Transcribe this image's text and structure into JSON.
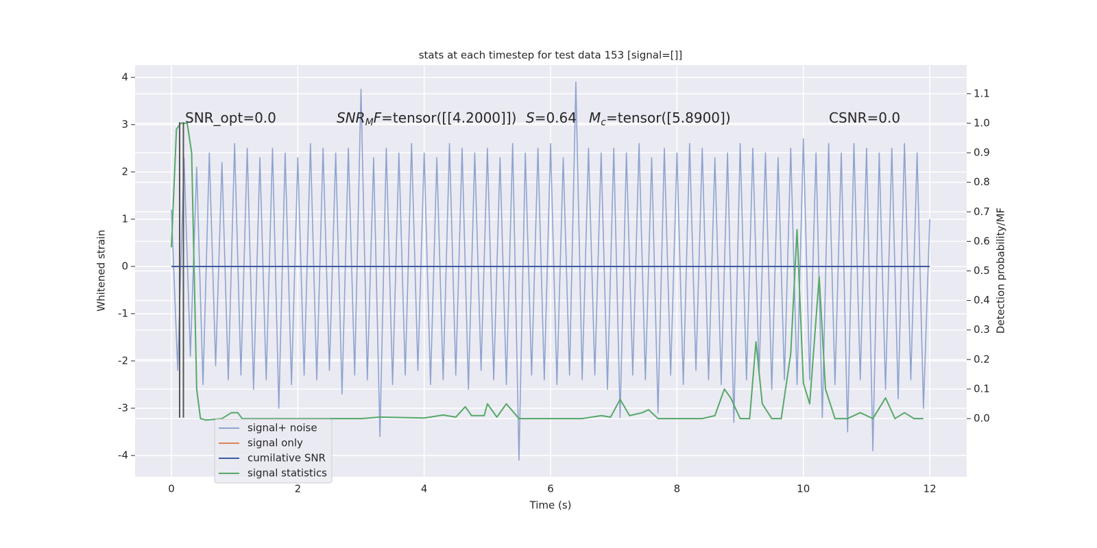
{
  "chart_data": {
    "type": "line",
    "title": "stats at each timestep for test data 153 [signal=[]]",
    "xlabel": "Time (s)",
    "ylabel": "Whitened strain",
    "y2label": "Detection probability/MF",
    "xlim": [
      -0.575,
      12.585
    ],
    "xticks": [
      0,
      2,
      4,
      6,
      8,
      10,
      12
    ],
    "ylim": [
      -4.45,
      4.26
    ],
    "yticks": [
      -4,
      -3,
      -2,
      -1,
      0,
      1,
      2,
      3,
      4
    ],
    "y2lim": [
      -0.197,
      1.197
    ],
    "y2ticks": [
      {
        "value": 0,
        "label": "0.0"
      },
      0.1,
      0.2,
      0.3,
      0.4,
      0.5,
      0.6,
      0.7,
      0.8,
      0.9,
      {
        "value": 1,
        "label": "1.0"
      },
      1.1
    ],
    "grid": true,
    "legend": "lower left",
    "series": [
      {
        "name": "signal+ noise",
        "color": "#8ea3cf",
        "x": [
          0,
          0.1,
          0.2,
          0.3,
          0.4,
          0.5,
          0.6,
          0.7,
          0.8,
          0.9,
          1,
          1.1,
          1.2,
          1.3,
          1.4,
          1.5,
          1.6,
          1.7,
          1.8,
          1.9,
          2,
          2.1,
          2.2,
          2.3,
          2.4,
          2.5,
          2.6,
          2.7,
          2.8,
          2.9,
          3,
          3.1,
          3.2,
          3.3,
          3.4,
          3.5,
          3.6,
          3.7,
          3.8,
          3.9,
          4,
          4.1,
          4.2,
          4.3,
          4.4,
          4.5,
          4.6,
          4.7,
          4.8,
          4.9,
          5,
          5.1,
          5.2,
          5.3,
          5.4,
          5.5,
          5.6,
          5.7,
          5.8,
          5.9,
          6,
          6.1,
          6.2,
          6.3,
          6.4,
          6.5,
          6.6,
          6.7,
          6.8,
          6.9,
          7,
          7.1,
          7.2,
          7.3,
          7.4,
          7.5,
          7.6,
          7.7,
          7.8,
          7.9,
          8,
          8.1,
          8.2,
          8.3,
          8.4,
          8.5,
          8.6,
          8.7,
          8.8,
          8.9,
          9,
          9.1,
          9.2,
          9.3,
          9.4,
          9.5,
          9.6,
          9.7,
          9.8,
          9.9,
          10,
          10.1,
          10.2,
          10.3,
          10.4,
          10.5,
          10.6,
          10.7,
          10.8,
          10.9,
          11,
          11.1,
          11.2,
          11.3,
          11.4,
          11.5,
          11.6,
          11.7,
          11.8,
          11.9,
          12
        ],
        "values": [
          1.2,
          -2.2,
          2.3,
          -1.9,
          2.1,
          -2.5,
          2.4,
          -2.1,
          2.2,
          -2.4,
          2.6,
          -2.3,
          2.5,
          -2.6,
          2.3,
          -2.4,
          2.5,
          -3.0,
          2.4,
          -2.5,
          2.3,
          -2.3,
          2.6,
          -2.4,
          2.5,
          -2.2,
          2.4,
          -2.7,
          2.5,
          -2.3,
          3.75,
          -2.4,
          2.3,
          -3.6,
          2.5,
          -2.5,
          2.4,
          -2.3,
          2.6,
          -2.2,
          2.4,
          -2.5,
          2.3,
          -2.4,
          2.6,
          -2.3,
          2.5,
          -2.6,
          2.4,
          -2.2,
          2.5,
          -2.4,
          2.3,
          -2.5,
          2.6,
          -4.1,
          2.4,
          -2.3,
          2.5,
          -2.4,
          2.6,
          -2.5,
          2.3,
          -2.3,
          3.9,
          -2.4,
          2.5,
          -2.3,
          2.4,
          -2.6,
          2.5,
          -3.2,
          2.4,
          -2.3,
          2.6,
          -2.4,
          2.3,
          -3.1,
          2.5,
          -2.3,
          2.4,
          -2.5,
          2.6,
          -2.2,
          2.5,
          -2.4,
          2.3,
          -2.5,
          2.4,
          -3.3,
          2.6,
          -2.4,
          2.5,
          -2.3,
          2.4,
          -2.6,
          2.3,
          -2.4,
          2.5,
          -2.5,
          2.7,
          -2.4,
          2.4,
          -3.2,
          2.6,
          -2.5,
          2.4,
          -3.5,
          2.6,
          -2.4,
          2.5,
          -3.9,
          2.4,
          -2.6,
          2.5,
          -2.8,
          2.6,
          -2.4,
          2.4,
          -3.0,
          1.0
        ]
      },
      {
        "name": "signal only",
        "color": "#dd8452",
        "x": [
          0,
          12
        ],
        "values": [
          0,
          0
        ]
      },
      {
        "name": "cumilative SNR",
        "color": "#3a5ba0",
        "x": [
          0,
          12
        ],
        "values": [
          0,
          0
        ]
      },
      {
        "name": "signal statistics",
        "color": "#55a868",
        "axis": "y2",
        "x": [
          0,
          0.08,
          0.15,
          0.25,
          0.32,
          0.4,
          0.46,
          0.55,
          0.8,
          0.95,
          1.05,
          1.12,
          1.5,
          2,
          3,
          3.3,
          4,
          4.3,
          4.5,
          4.65,
          4.75,
          4.95,
          5,
          5.15,
          5.3,
          5.5,
          6,
          6.5,
          6.8,
          6.95,
          7.1,
          7.25,
          7.45,
          7.55,
          7.7,
          8,
          8.4,
          8.6,
          8.75,
          8.85,
          9,
          9.15,
          9.25,
          9.35,
          9.5,
          9.65,
          9.8,
          9.9,
          10,
          10.1,
          10.25,
          10.35,
          10.5,
          10.7,
          10.9,
          11.1,
          11.3,
          11.45,
          11.6,
          11.75,
          11.9
        ],
        "values": [
          0.58,
          0.98,
          1.0,
          1.0,
          0.9,
          0.1,
          0.0,
          -0.005,
          0.0,
          0.02,
          0.02,
          0.0,
          0.0,
          0.0,
          0.0,
          0.005,
          0.002,
          0.012,
          0.005,
          0.04,
          0.01,
          0.01,
          0.05,
          0.005,
          0.05,
          0.0,
          0.0,
          0.0,
          0.01,
          0.005,
          0.065,
          0.01,
          0.02,
          0.03,
          0.0,
          0.0,
          0.0,
          0.01,
          0.1,
          0.07,
          0.0,
          0.0,
          0.26,
          0.05,
          0.0,
          0.0,
          0.22,
          0.64,
          0.12,
          0.05,
          0.48,
          0.1,
          0.0,
          0.0,
          0.02,
          0.0,
          0.07,
          0.0,
          0.02,
          0.0,
          0.0
        ]
      }
    ],
    "vlines": {
      "x": [
        0.13,
        0.19
      ],
      "ymin": -3.2,
      "ymax": 3.05,
      "color": "#555555"
    },
    "annotations": [
      {
        "text": "SNR_opt=0.0"
      },
      {
        "math": "SNR",
        "sub": "M",
        "math2": "F",
        "text": "=tensor([[4.2000]])"
      },
      {
        "math": "S",
        "text": "=0.64"
      },
      {
        "math": "M",
        "sub": "c",
        "text": "=tensor([5.8900])"
      },
      {
        "text": "CSNR=0.0"
      }
    ]
  }
}
